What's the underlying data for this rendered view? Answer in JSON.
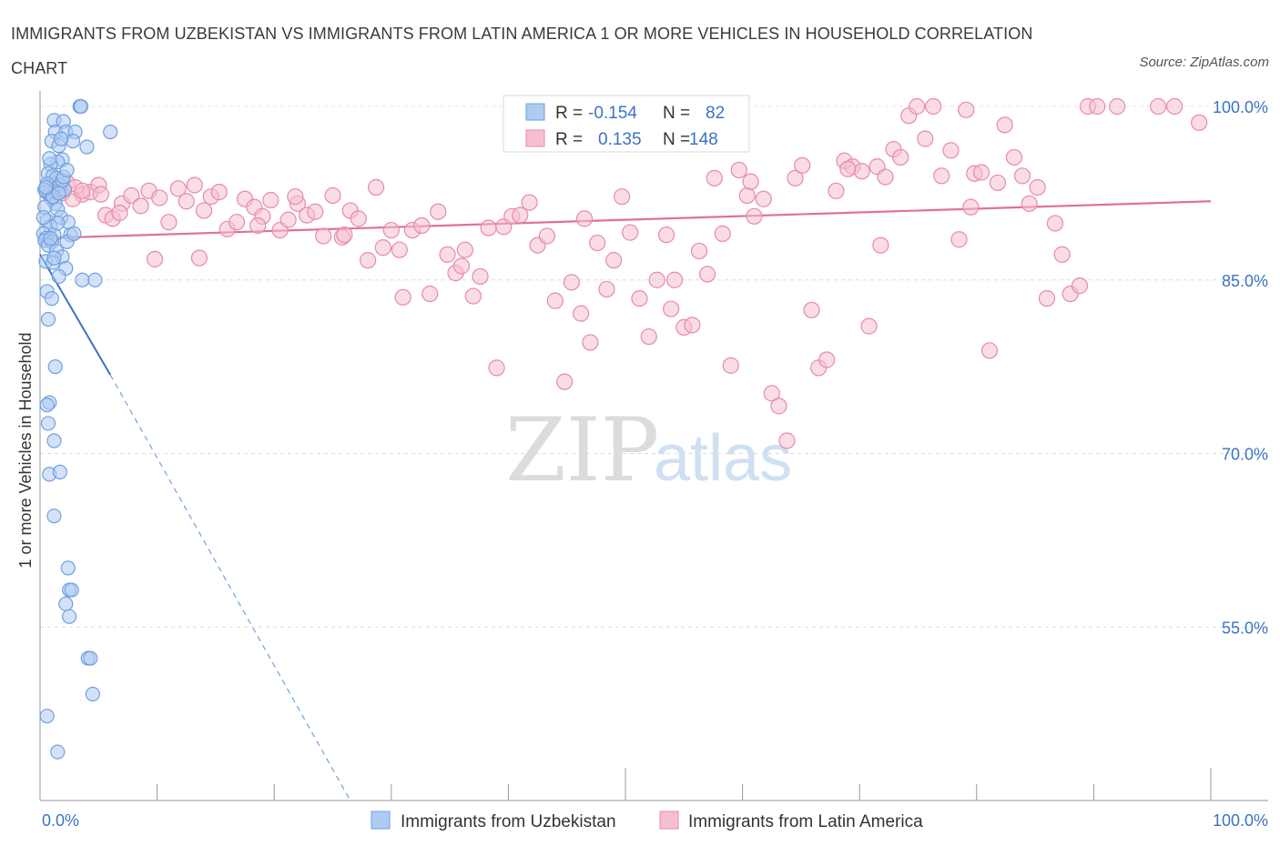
{
  "title": "IMMIGRANTS FROM UZBEKISTAN VS IMMIGRANTS FROM LATIN AMERICA 1 OR MORE VEHICLES IN HOUSEHOLD CORRELATION CHART",
  "source": "Source: ZipAtlas.com",
  "watermark": {
    "zip": "ZIP",
    "atlas": "atlas"
  },
  "chart_data": {
    "type": "scatter",
    "xlabel": "",
    "ylabel": "1 or more Vehicles in Household",
    "xlim": [
      0,
      100
    ],
    "ylim": [
      40,
      100
    ],
    "x_tick_labels": [
      "0.0%",
      "100.0%"
    ],
    "y_ticks": [
      55,
      70,
      85,
      100
    ],
    "y_tick_labels": [
      "55.0%",
      "70.0%",
      "85.0%",
      "100.0%"
    ],
    "grid": true,
    "legend_position": "top-center",
    "stats": [
      {
        "r_label": "R =",
        "r_value": "-0.154",
        "n_label": "N =",
        "n_value": "82"
      },
      {
        "r_label": "R =",
        "r_value": "0.135",
        "n_label": "N =",
        "n_value": "148"
      }
    ],
    "series": [
      {
        "name": "Immigrants from Uzbekistan",
        "color": "#6fa0e0",
        "fill": "#aecbf2",
        "trend": {
          "x": [
            0,
            6.0
          ],
          "y": [
            87.2,
            76.8
          ],
          "dashed_to": [
            26.5,
            40
          ]
        },
        "points": [
          [
            3.4,
            100
          ],
          [
            3.5,
            100
          ],
          [
            1.2,
            98.8
          ],
          [
            2.0,
            98.7
          ],
          [
            1.3,
            97.8
          ],
          [
            2.2,
            97.8
          ],
          [
            3.0,
            97.8
          ],
          [
            6.0,
            97.8
          ],
          [
            1.0,
            97.0
          ],
          [
            2.8,
            97.0
          ],
          [
            1.6,
            96.6
          ],
          [
            4.0,
            96.5
          ],
          [
            1.9,
            95.4
          ],
          [
            1.5,
            95.2
          ],
          [
            0.9,
            95.0
          ],
          [
            0.7,
            94.2
          ],
          [
            1.1,
            94.0
          ],
          [
            1.4,
            93.8
          ],
          [
            0.6,
            93.3
          ],
          [
            1.7,
            93.2
          ],
          [
            2.1,
            92.8
          ],
          [
            0.5,
            92.6
          ],
          [
            0.8,
            92.4
          ],
          [
            1.0,
            92.0
          ],
          [
            1.3,
            91.6
          ],
          [
            0.4,
            91.3
          ],
          [
            1.5,
            91.1
          ],
          [
            1.8,
            90.4
          ],
          [
            0.6,
            90.1
          ],
          [
            2.4,
            90.0
          ],
          [
            0.9,
            89.6
          ],
          [
            0.3,
            89.0
          ],
          [
            1.2,
            88.9
          ],
          [
            2.6,
            88.9
          ],
          [
            0.5,
            88.6
          ],
          [
            0.4,
            88.4
          ],
          [
            1.0,
            88.3
          ],
          [
            2.3,
            88.3
          ],
          [
            0.7,
            88.0
          ],
          [
            1.4,
            87.5
          ],
          [
            1.9,
            87.0
          ],
          [
            0.5,
            86.6
          ],
          [
            1.1,
            86.5
          ],
          [
            2.2,
            86.0
          ],
          [
            1.6,
            85.3
          ],
          [
            3.6,
            85.0
          ],
          [
            4.7,
            85.0
          ],
          [
            0.6,
            84.0
          ],
          [
            1.0,
            83.4
          ],
          [
            0.7,
            81.6
          ],
          [
            1.3,
            77.5
          ],
          [
            0.8,
            74.4
          ],
          [
            0.6,
            74.2
          ],
          [
            0.7,
            72.6
          ],
          [
            1.2,
            71.1
          ],
          [
            0.8,
            68.2
          ],
          [
            1.7,
            68.4
          ],
          [
            1.2,
            64.6
          ],
          [
            2.4,
            60.1
          ],
          [
            2.5,
            58.2
          ],
          [
            2.7,
            58.2
          ],
          [
            2.2,
            57.0
          ],
          [
            2.5,
            55.9
          ],
          [
            4.1,
            52.3
          ],
          [
            4.3,
            52.3
          ],
          [
            4.5,
            49.2
          ],
          [
            0.6,
            47.3
          ],
          [
            1.5,
            44.2
          ],
          [
            0.4,
            92.8
          ],
          [
            1.9,
            93.6
          ],
          [
            1.1,
            92.2
          ],
          [
            0.8,
            95.5
          ],
          [
            2.0,
            93.9
          ],
          [
            1.2,
            86.9
          ],
          [
            2.9,
            89.0
          ],
          [
            0.3,
            90.4
          ],
          [
            1.6,
            92.5
          ],
          [
            0.9,
            88.6
          ],
          [
            2.3,
            94.5
          ],
          [
            1.8,
            97.2
          ],
          [
            0.5,
            93.0
          ],
          [
            1.5,
            89.9
          ]
        ]
      },
      {
        "name": "Immigrants from Latin America",
        "color": "#e88aa9",
        "fill": "#f6bfd0",
        "trend": {
          "x": [
            0,
            100
          ],
          "y": [
            88.6,
            91.8
          ]
        },
        "points": [
          [
            0.8,
            92.6
          ],
          [
            1.3,
            93.2
          ],
          [
            1.9,
            92.5
          ],
          [
            2.3,
            93.4
          ],
          [
            3.0,
            93.0
          ],
          [
            3.6,
            92.4
          ],
          [
            4.3,
            92.6
          ],
          [
            5.0,
            93.2
          ],
          [
            5.6,
            90.6
          ],
          [
            6.2,
            90.3
          ],
          [
            7.0,
            91.6
          ],
          [
            7.8,
            92.3
          ],
          [
            8.6,
            91.4
          ],
          [
            9.3,
            92.7
          ],
          [
            10.2,
            92.1
          ],
          [
            11.0,
            90.0
          ],
          [
            11.8,
            92.9
          ],
          [
            12.5,
            91.8
          ],
          [
            13.2,
            93.2
          ],
          [
            14.0,
            91.0
          ],
          [
            14.6,
            92.2
          ],
          [
            15.3,
            92.6
          ],
          [
            16.0,
            89.4
          ],
          [
            16.8,
            90.0
          ],
          [
            17.5,
            92.0
          ],
          [
            18.3,
            91.3
          ],
          [
            19.0,
            90.5
          ],
          [
            19.7,
            91.9
          ],
          [
            20.5,
            89.3
          ],
          [
            21.2,
            90.2
          ],
          [
            22.0,
            91.6
          ],
          [
            22.8,
            90.6
          ],
          [
            23.5,
            90.9
          ],
          [
            24.2,
            88.8
          ],
          [
            25.0,
            92.3
          ],
          [
            25.8,
            88.7
          ],
          [
            26.5,
            91.0
          ],
          [
            27.2,
            90.3
          ],
          [
            28.0,
            86.7
          ],
          [
            28.7,
            93.0
          ],
          [
            29.3,
            87.8
          ],
          [
            30.0,
            89.3
          ],
          [
            31.0,
            83.5
          ],
          [
            31.8,
            89.3
          ],
          [
            32.6,
            89.7
          ],
          [
            33.3,
            83.8
          ],
          [
            34.0,
            90.9
          ],
          [
            34.8,
            87.2
          ],
          [
            35.5,
            85.6
          ],
          [
            36.3,
            87.6
          ],
          [
            37.0,
            83.6
          ],
          [
            37.6,
            85.3
          ],
          [
            38.3,
            89.5
          ],
          [
            39.0,
            77.4
          ],
          [
            39.6,
            89.6
          ],
          [
            40.3,
            90.5
          ],
          [
            41.0,
            90.6
          ],
          [
            41.8,
            91.7
          ],
          [
            42.5,
            88.0
          ],
          [
            43.3,
            88.8
          ],
          [
            44.0,
            83.2
          ],
          [
            44.8,
            76.2
          ],
          [
            45.4,
            84.8
          ],
          [
            46.2,
            82.1
          ],
          [
            47.0,
            79.6
          ],
          [
            47.6,
            88.2
          ],
          [
            48.4,
            84.2
          ],
          [
            49.0,
            86.7
          ],
          [
            49.7,
            92.2
          ],
          [
            50.4,
            89.1
          ],
          [
            51.2,
            83.4
          ],
          [
            52.0,
            80.1
          ],
          [
            52.7,
            85.0
          ],
          [
            53.5,
            88.9
          ],
          [
            54.2,
            85.0
          ],
          [
            55.0,
            80.9
          ],
          [
            55.7,
            81.1
          ],
          [
            56.3,
            87.5
          ],
          [
            57.0,
            85.5
          ],
          [
            57.6,
            93.8
          ],
          [
            58.3,
            89.0
          ],
          [
            59.0,
            77.6
          ],
          [
            59.7,
            94.5
          ],
          [
            60.4,
            92.3
          ],
          [
            61.0,
            90.5
          ],
          [
            61.8,
            92.0
          ],
          [
            62.5,
            75.2
          ],
          [
            63.1,
            74.1
          ],
          [
            63.8,
            71.1
          ],
          [
            64.5,
            93.8
          ],
          [
            65.1,
            94.9
          ],
          [
            65.9,
            82.4
          ],
          [
            66.5,
            77.4
          ],
          [
            67.2,
            78.1
          ],
          [
            68.0,
            92.7
          ],
          [
            68.7,
            95.3
          ],
          [
            69.4,
            94.8
          ],
          [
            70.2,
            94.4
          ],
          [
            70.8,
            81.0
          ],
          [
            71.5,
            94.8
          ],
          [
            72.2,
            93.9
          ],
          [
            72.9,
            96.3
          ],
          [
            73.5,
            95.6
          ],
          [
            74.2,
            99.2
          ],
          [
            74.9,
            100
          ],
          [
            75.6,
            97.2
          ],
          [
            76.3,
            100
          ],
          [
            77.0,
            94.0
          ],
          [
            77.8,
            96.2
          ],
          [
            78.5,
            88.5
          ],
          [
            79.1,
            99.7
          ],
          [
            79.8,
            94.2
          ],
          [
            80.4,
            94.3
          ],
          [
            81.1,
            78.9
          ],
          [
            81.8,
            93.4
          ],
          [
            82.4,
            98.4
          ],
          [
            83.2,
            95.6
          ],
          [
            83.9,
            94.0
          ],
          [
            84.5,
            91.6
          ],
          [
            85.2,
            93.0
          ],
          [
            86.0,
            83.4
          ],
          [
            86.7,
            89.9
          ],
          [
            87.3,
            87.2
          ],
          [
            88.0,
            83.8
          ],
          [
            88.8,
            84.5
          ],
          [
            89.5,
            100
          ],
          [
            90.3,
            100
          ],
          [
            92.0,
            100
          ],
          [
            95.5,
            100
          ],
          [
            96.9,
            100
          ],
          [
            99.0,
            98.6
          ],
          [
            1.0,
            92.5
          ],
          [
            2.0,
            92.8
          ],
          [
            2.8,
            92.0
          ],
          [
            3.6,
            92.7
          ],
          [
            5.2,
            92.4
          ],
          [
            6.8,
            90.8
          ],
          [
            9.8,
            86.8
          ],
          [
            13.6,
            86.9
          ],
          [
            18.6,
            89.7
          ],
          [
            21.8,
            92.2
          ],
          [
            26.0,
            88.9
          ],
          [
            30.7,
            87.6
          ],
          [
            36.0,
            86.2
          ],
          [
            46.5,
            90.3
          ],
          [
            53.9,
            82.5
          ],
          [
            60.7,
            93.5
          ],
          [
            69.0,
            94.6
          ],
          [
            71.8,
            88.0
          ],
          [
            79.5,
            91.3
          ]
        ]
      }
    ]
  },
  "bottom_legend": [
    "Immigrants from Uzbekistan",
    "Immigrants from Latin America"
  ]
}
